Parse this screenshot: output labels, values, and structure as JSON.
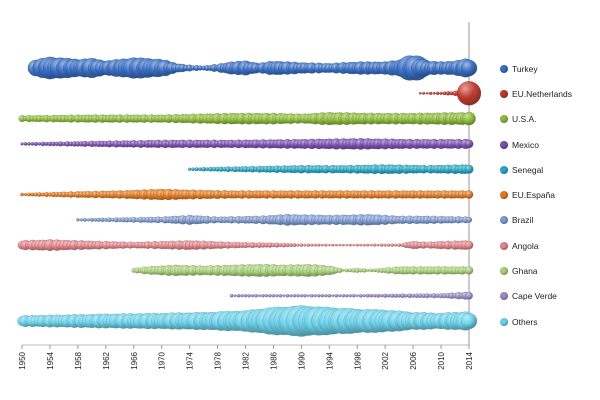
{
  "chart_data": {
    "type": "scatter",
    "encoding": "bubble-timeline",
    "x_ticks": [
      1950,
      1954,
      1958,
      1962,
      1966,
      1970,
      1974,
      1978,
      1982,
      1986,
      1990,
      1994,
      1998,
      2002,
      2006,
      2010,
      2014
    ],
    "xlim": [
      1950,
      2014
    ],
    "grid": "horizontal lines per row",
    "legend_position": "right",
    "series": [
      {
        "name": "Turkey",
        "color": "#3b6fc4",
        "start": 1952,
        "profile": [
          [
            1952,
            10
          ],
          [
            1954,
            14
          ],
          [
            1958,
            11
          ],
          [
            1960,
            12
          ],
          [
            1962,
            9
          ],
          [
            1964,
            11
          ],
          [
            1966,
            13
          ],
          [
            1968,
            12
          ],
          [
            1970,
            11
          ],
          [
            1972,
            6
          ],
          [
            1974,
            4
          ],
          [
            1976,
            3
          ],
          [
            1978,
            5
          ],
          [
            1980,
            8
          ],
          [
            1982,
            9
          ],
          [
            1984,
            6
          ],
          [
            1986,
            9
          ],
          [
            1988,
            8
          ],
          [
            1990,
            7
          ],
          [
            1994,
            6
          ],
          [
            1998,
            8
          ],
          [
            2002,
            8
          ],
          [
            2004,
            10
          ],
          [
            2006,
            17
          ],
          [
            2008,
            9
          ],
          [
            2010,
            8
          ],
          [
            2012,
            9
          ],
          [
            2014,
            12
          ]
        ]
      },
      {
        "name": "EU.Netherlands",
        "color": "#c0392b",
        "start": 2007,
        "profile": [
          [
            2007,
            1.5
          ],
          [
            2010,
            2
          ],
          [
            2012,
            3
          ],
          [
            2013,
            6
          ],
          [
            2014,
            16
          ]
        ]
      },
      {
        "name": "U.S.A.",
        "color": "#8dbb3c",
        "start": 1950,
        "profile": [
          [
            1950,
            4
          ],
          [
            1960,
            5
          ],
          [
            1970,
            5
          ],
          [
            1980,
            7
          ],
          [
            1986,
            7
          ],
          [
            1990,
            6
          ],
          [
            1994,
            8
          ],
          [
            2000,
            7
          ],
          [
            2006,
            7
          ],
          [
            2014,
            8
          ]
        ]
      },
      {
        "name": "Mexico",
        "color": "#7a4fb0",
        "start": 1950,
        "profile": [
          [
            1950,
            2
          ],
          [
            1956,
            3
          ],
          [
            1962,
            4
          ],
          [
            1970,
            5
          ],
          [
            1980,
            5
          ],
          [
            1990,
            6
          ],
          [
            1998,
            7
          ],
          [
            2006,
            6
          ],
          [
            2014,
            6
          ]
        ]
      },
      {
        "name": "Senegal",
        "color": "#2aa6c4",
        "start": 1974,
        "profile": [
          [
            1974,
            2
          ],
          [
            1978,
            3
          ],
          [
            1984,
            4
          ],
          [
            1990,
            5
          ],
          [
            1996,
            5
          ],
          [
            2002,
            6
          ],
          [
            2008,
            5
          ],
          [
            2014,
            6
          ]
        ]
      },
      {
        "name": "EU.España",
        "color": "#e07b22",
        "start": 1950,
        "profile": [
          [
            1950,
            2
          ],
          [
            1954,
            3
          ],
          [
            1958,
            4
          ],
          [
            1964,
            5
          ],
          [
            1970,
            7
          ],
          [
            1974,
            6
          ],
          [
            1980,
            5
          ],
          [
            1990,
            5
          ],
          [
            2000,
            5
          ],
          [
            2008,
            5
          ],
          [
            2014,
            5
          ]
        ]
      },
      {
        "name": "Brazil",
        "color": "#7f9bd0",
        "start": 1958,
        "profile": [
          [
            1958,
            2
          ],
          [
            1964,
            3
          ],
          [
            1970,
            4
          ],
          [
            1974,
            6
          ],
          [
            1978,
            4
          ],
          [
            1984,
            5
          ],
          [
            1988,
            7
          ],
          [
            1994,
            6
          ],
          [
            2000,
            7
          ],
          [
            2004,
            5
          ],
          [
            2008,
            5
          ],
          [
            2014,
            4
          ]
        ]
      },
      {
        "name": "Angola",
        "color": "#e0848a",
        "start": 1950,
        "profile": [
          [
            1950,
            6
          ],
          [
            1954,
            7
          ],
          [
            1958,
            6
          ],
          [
            1962,
            5
          ],
          [
            1966,
            4
          ],
          [
            1970,
            5
          ],
          [
            1974,
            6
          ],
          [
            1980,
            4
          ],
          [
            1986,
            3
          ],
          [
            1990,
            2
          ],
          [
            1996,
            1.5
          ],
          [
            2004,
            2
          ],
          [
            2006,
            5
          ],
          [
            2008,
            4
          ],
          [
            2010,
            5
          ],
          [
            2014,
            6
          ]
        ]
      },
      {
        "name": "Ghana",
        "color": "#a9cf7a",
        "start": 1966,
        "profile": [
          [
            1966,
            3
          ],
          [
            1968,
            5
          ],
          [
            1972,
            7
          ],
          [
            1976,
            6
          ],
          [
            1980,
            7
          ],
          [
            1984,
            8
          ],
          [
            1988,
            7
          ],
          [
            1991,
            8
          ],
          [
            1994,
            6
          ],
          [
            1996,
            2
          ],
          [
            1998,
            3
          ],
          [
            2000,
            2
          ],
          [
            2004,
            5
          ],
          [
            2008,
            5
          ],
          [
            2014,
            5
          ]
        ]
      },
      {
        "name": "Cape Verde",
        "color": "#9c8cc6",
        "start": 1980,
        "profile": [
          [
            1980,
            2
          ],
          [
            1986,
            2
          ],
          [
            1992,
            2
          ],
          [
            1998,
            2
          ],
          [
            2004,
            2.5
          ],
          [
            2010,
            3
          ],
          [
            2014,
            5
          ]
        ]
      },
      {
        "name": "Others",
        "color": "#6fd2ea",
        "start": 1950,
        "profile": [
          [
            1950,
            7
          ],
          [
            1956,
            8
          ],
          [
            1962,
            9
          ],
          [
            1970,
            10
          ],
          [
            1976,
            11
          ],
          [
            1982,
            13
          ],
          [
            1986,
            17
          ],
          [
            1990,
            19
          ],
          [
            1994,
            17
          ],
          [
            1998,
            15
          ],
          [
            2002,
            14
          ],
          [
            2006,
            11
          ],
          [
            2010,
            10
          ],
          [
            2014,
            12
          ]
        ]
      }
    ]
  }
}
